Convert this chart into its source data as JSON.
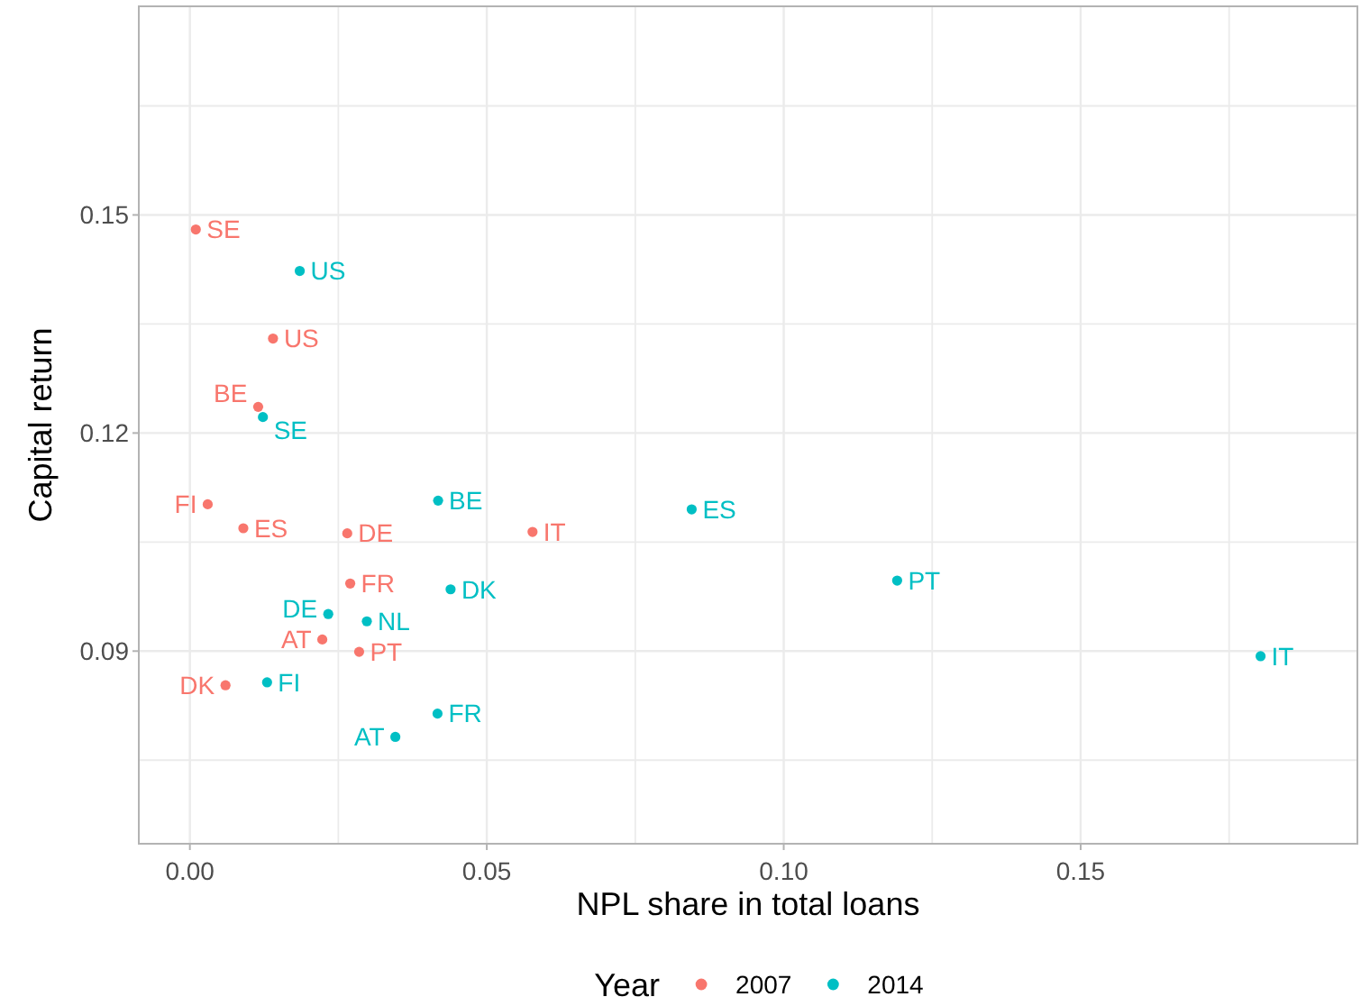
{
  "chart_data": {
    "type": "scatter",
    "xlabel": "NPL share in total loans",
    "ylabel": "Capital return",
    "legend_title": "Year",
    "legend": "bottom",
    "grid": true,
    "marker": "circle",
    "xlim": [
      -0.0086,
      0.1966
    ],
    "ylim": [
      0.0635,
      0.1787
    ],
    "xticks": [
      {
        "value": 0,
        "label": "0.00"
      },
      {
        "value": 0.025,
        "label": null
      },
      0.05,
      {
        "value": 0.075,
        "label": null
      },
      {
        "value": 0.1,
        "label": "0.10"
      },
      {
        "value": 0.125,
        "label": null
      },
      0.15,
      {
        "value": 0.175,
        "label": null
      }
    ],
    "yticks": [
      {
        "value": 0.075,
        "label": null
      },
      0.09,
      {
        "value": 0.105,
        "label": null
      },
      0.12,
      {
        "value": 0.135,
        "label": null
      },
      0.15,
      {
        "value": 0.165,
        "label": null
      }
    ],
    "series": [
      {
        "name": "2007",
        "color": "#f8766d",
        "x": [
          0.001,
          0.014,
          0.0115,
          0.003,
          0.009,
          0.0265,
          0.0577,
          0.027,
          0.0223,
          0.0285,
          0.006
        ],
        "values": [
          0.148,
          0.133,
          0.1236,
          0.1102,
          0.1069,
          0.1062,
          0.1064,
          0.0993,
          0.0916,
          0.0899,
          0.0853
        ],
        "value_labels": [
          "SE",
          "US",
          "BE",
          "FI",
          "ES",
          "DE",
          "IT",
          "FR",
          "AT",
          "PT",
          "DK"
        ]
      },
      {
        "name": "2014",
        "color": "#00bfc4",
        "x": [
          0.0185,
          0.0123,
          0.0418,
          0.0845,
          0.0439,
          0.0233,
          0.0298,
          0.1191,
          0.1803,
          0.013,
          0.0417,
          0.0346
        ],
        "values": [
          0.1423,
          0.1222,
          0.1107,
          0.1095,
          0.0985,
          0.0951,
          0.0941,
          0.0997,
          0.0893,
          0.0857,
          0.0814,
          0.0782
        ],
        "value_labels": [
          "US",
          "SE",
          "BE",
          "ES",
          "DK",
          "DE",
          "NL",
          "PT",
          "IT",
          "FI",
          "FR",
          "AT"
        ]
      }
    ]
  }
}
